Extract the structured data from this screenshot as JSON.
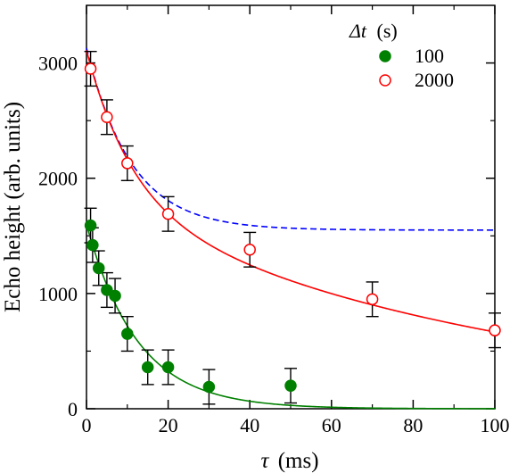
{
  "chart_data": {
    "type": "scatter",
    "xlabel_symbol": "τ",
    "xlabel_unit": "(ms)",
    "ylabel": "Echo height (arb. units)",
    "xlim": [
      0,
      100
    ],
    "ylim": [
      0,
      3500
    ],
    "xticks": [
      0,
      20,
      40,
      60,
      80,
      100
    ],
    "yticks": [
      0,
      1000,
      2000,
      3000
    ],
    "grid": false,
    "legend": {
      "title_symbol": "Δt",
      "title_unit": "(s)",
      "placement": "top-right"
    },
    "series": [
      {
        "name": "100",
        "marker": "filled-circle",
        "color": "#008000",
        "points": [
          {
            "x": 1,
            "y": 1590,
            "err": 150
          },
          {
            "x": 1.5,
            "y": 1420,
            "err": 150
          },
          {
            "x": 3,
            "y": 1220,
            "err": 150
          },
          {
            "x": 5,
            "y": 1030,
            "err": 150
          },
          {
            "x": 7,
            "y": 980,
            "err": 150
          },
          {
            "x": 10,
            "y": 650,
            "err": 150
          },
          {
            "x": 15,
            "y": 360,
            "err": 150
          },
          {
            "x": 20,
            "y": 360,
            "err": 150
          },
          {
            "x": 30,
            "y": 190,
            "err": 150
          },
          {
            "x": 50,
            "y": 200,
            "err": 150
          }
        ],
        "fit": {
          "amplitude": 1600,
          "decay_ms": 12.5
        }
      },
      {
        "name": "2000",
        "marker": "open-circle",
        "color": "#ff0000",
        "points": [
          {
            "x": 1,
            "y": 2950,
            "err": 150
          },
          {
            "x": 5,
            "y": 2530,
            "err": 150
          },
          {
            "x": 10,
            "y": 2130,
            "err": 150
          },
          {
            "x": 20,
            "y": 1690,
            "err": 150
          },
          {
            "x": 40,
            "y": 1380,
            "err": 150
          },
          {
            "x": 70,
            "y": 950,
            "err": 150
          },
          {
            "x": 100,
            "y": 680,
            "err": 150
          }
        ],
        "fit": {
          "fast_amplitude": 1300,
          "fast_decay_ms": 11,
          "slow_amplitude": 1810,
          "slow_decay_ms": 100
        }
      }
    ],
    "dashed_curve": {
      "color": "#0000ff",
      "baseline": 1550,
      "amplitude": 1580,
      "decay_ms": 11
    }
  }
}
